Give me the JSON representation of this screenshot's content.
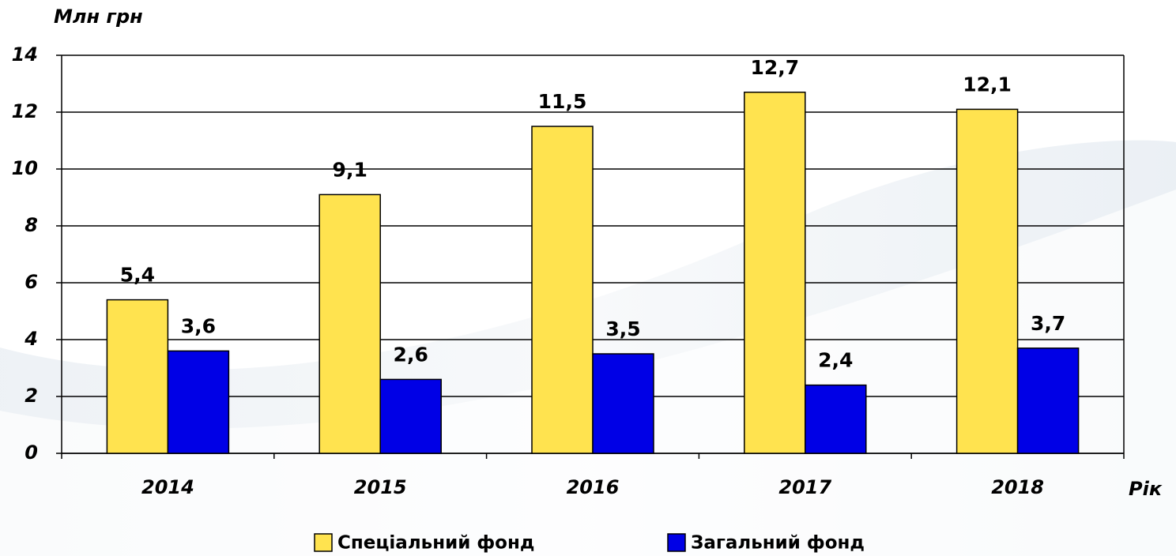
{
  "chart_data": {
    "type": "bar",
    "y_label": "Млн грн",
    "x_label": "Рік",
    "categories": [
      "2014",
      "2015",
      "2016",
      "2017",
      "2018"
    ],
    "series": [
      {
        "name": "Спеціальний фонд",
        "color": "#ffe34f",
        "values": [
          5.4,
          9.1,
          11.5,
          12.7,
          12.1
        ],
        "value_labels": [
          "5,4",
          "9,1",
          "11,5",
          "12,7",
          "12,1"
        ]
      },
      {
        "name": "Загальний фонд",
        "color": "#0000e6",
        "values": [
          3.6,
          2.6,
          3.5,
          2.4,
          3.7
        ],
        "value_labels": [
          "3,6",
          "2,6",
          "3,5",
          "2,4",
          "3,7"
        ]
      }
    ],
    "ylim": [
      0,
      14
    ],
    "yticks": [
      0,
      2,
      4,
      6,
      8,
      10,
      12,
      14
    ],
    "grid": true,
    "legend": "bottom"
  }
}
